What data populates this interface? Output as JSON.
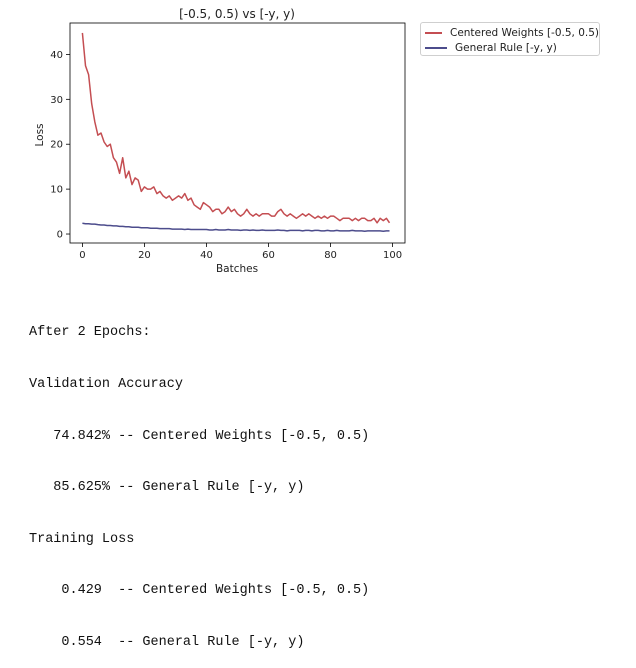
{
  "chart_data": {
    "type": "line",
    "title": "[-0.5, 0.5) vs [-y, y)",
    "xlabel": "Batches",
    "ylabel": "Loss",
    "xlim": [
      -4,
      104
    ],
    "ylim": [
      -2,
      47
    ],
    "xticks": [
      0,
      20,
      40,
      60,
      80,
      100
    ],
    "yticks": [
      0,
      10,
      20,
      30,
      40
    ],
    "grid": false,
    "legend_position": "outside-top-right",
    "series": [
      {
        "name": "Centered Weights [-0.5, 0.5)",
        "color": "#c44e52",
        "x": [
          0,
          1,
          2,
          3,
          4,
          5,
          6,
          7,
          8,
          9,
          10,
          11,
          12,
          13,
          14,
          15,
          16,
          17,
          18,
          19,
          20,
          21,
          22,
          23,
          24,
          25,
          26,
          27,
          28,
          29,
          30,
          31,
          32,
          33,
          34,
          35,
          36,
          37,
          38,
          39,
          40,
          41,
          42,
          43,
          44,
          45,
          46,
          47,
          48,
          49,
          50,
          51,
          52,
          53,
          54,
          55,
          56,
          57,
          58,
          59,
          60,
          61,
          62,
          63,
          64,
          65,
          66,
          67,
          68,
          69,
          70,
          71,
          72,
          73,
          74,
          75,
          76,
          77,
          78,
          79,
          80,
          81,
          82,
          83,
          84,
          85,
          86,
          87,
          88,
          89,
          90,
          91,
          92,
          93,
          94,
          95,
          96,
          97,
          98,
          99
        ],
        "values": [
          44.8,
          37.5,
          35.5,
          29.0,
          25.0,
          22.0,
          22.5,
          20.5,
          19.5,
          20.0,
          17.0,
          16.0,
          13.5,
          17.0,
          12.5,
          14.0,
          11.0,
          12.5,
          12.0,
          9.5,
          10.5,
          10.0,
          10.0,
          10.5,
          9.0,
          9.5,
          8.5,
          8.0,
          8.5,
          7.5,
          8.0,
          8.5,
          8.0,
          9.0,
          7.5,
          8.0,
          6.5,
          6.0,
          5.5,
          7.0,
          6.5,
          6.0,
          5.0,
          5.5,
          5.5,
          4.5,
          5.0,
          6.0,
          5.0,
          5.5,
          4.5,
          4.0,
          4.5,
          5.5,
          4.5,
          4.0,
          4.5,
          4.0,
          4.5,
          4.5,
          4.5,
          4.0,
          4.0,
          5.0,
          5.5,
          4.5,
          4.0,
          4.5,
          4.0,
          3.5,
          4.0,
          4.5,
          4.0,
          4.5,
          4.0,
          3.5,
          4.0,
          3.5,
          4.0,
          3.5,
          4.0,
          4.0,
          3.5,
          3.0,
          3.5,
          3.5,
          3.5,
          3.0,
          3.5,
          3.0,
          3.5,
          3.5,
          3.0,
          3.0,
          3.5,
          2.5,
          3.5,
          3.0,
          3.5,
          2.5
        ]
      },
      {
        "name": "General Rule [-y, y)",
        "color": "#4c4c8c",
        "x": [
          0,
          1,
          2,
          3,
          4,
          5,
          6,
          7,
          8,
          9,
          10,
          11,
          12,
          13,
          14,
          15,
          16,
          17,
          18,
          19,
          20,
          21,
          22,
          23,
          24,
          25,
          26,
          27,
          28,
          29,
          30,
          31,
          32,
          33,
          34,
          35,
          36,
          37,
          38,
          39,
          40,
          41,
          42,
          43,
          44,
          45,
          46,
          47,
          48,
          49,
          50,
          51,
          52,
          53,
          54,
          55,
          56,
          57,
          58,
          59,
          60,
          61,
          62,
          63,
          64,
          65,
          66,
          67,
          68,
          69,
          70,
          71,
          72,
          73,
          74,
          75,
          76,
          77,
          78,
          79,
          80,
          81,
          82,
          83,
          84,
          85,
          86,
          87,
          88,
          89,
          90,
          91,
          92,
          93,
          94,
          95,
          96,
          97,
          98,
          99
        ],
        "values": [
          2.4,
          2.3,
          2.3,
          2.2,
          2.2,
          2.1,
          2.0,
          2.0,
          1.9,
          1.9,
          1.8,
          1.8,
          1.7,
          1.7,
          1.6,
          1.6,
          1.5,
          1.5,
          1.5,
          1.4,
          1.4,
          1.4,
          1.3,
          1.3,
          1.3,
          1.2,
          1.2,
          1.2,
          1.2,
          1.1,
          1.1,
          1.1,
          1.1,
          1.0,
          1.1,
          1.0,
          1.0,
          1.0,
          1.0,
          1.0,
          1.0,
          0.9,
          0.9,
          1.0,
          0.9,
          0.9,
          0.9,
          1.0,
          0.9,
          0.9,
          0.9,
          0.8,
          0.9,
          0.9,
          0.8,
          0.9,
          0.8,
          0.8,
          0.9,
          0.8,
          0.8,
          0.8,
          0.8,
          0.9,
          0.8,
          0.8,
          0.7,
          0.8,
          0.8,
          0.8,
          0.8,
          0.7,
          0.8,
          0.8,
          0.7,
          0.8,
          0.8,
          0.7,
          0.7,
          0.8,
          0.7,
          0.7,
          0.8,
          0.7,
          0.7,
          0.7,
          0.7,
          0.8,
          0.7,
          0.7,
          0.7,
          0.6,
          0.7,
          0.7,
          0.7,
          0.7,
          0.7,
          0.6,
          0.7,
          0.7
        ]
      }
    ]
  },
  "output": {
    "lines": [
      "After 2 Epochs:",
      "Validation Accuracy",
      "   74.842% -- Centered Weights [-0.5, 0.5)",
      "   85.625% -- General Rule [-y, y)",
      "Training Loss",
      "    0.429  -- Centered Weights [-0.5, 0.5)",
      "    0.554  -- General Rule [-y, y)"
    ]
  }
}
